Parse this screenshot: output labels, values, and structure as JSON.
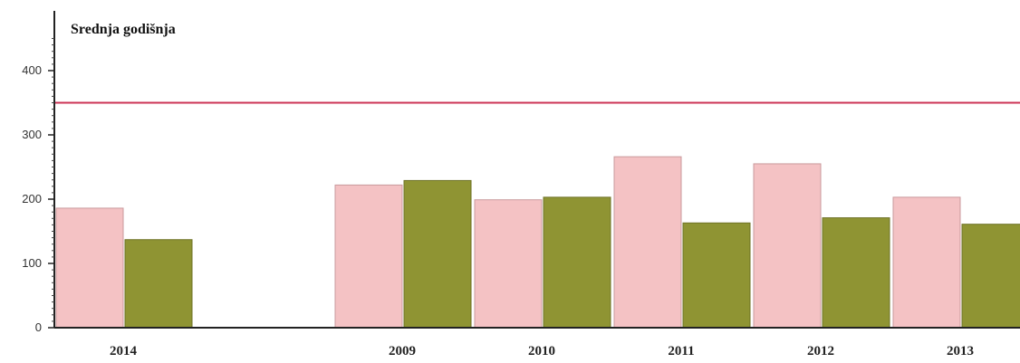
{
  "chart_data": {
    "type": "bar",
    "title": "Srednja godišnja",
    "xlabel": "",
    "ylabel": "",
    "categories": [
      "2014",
      "",
      "2009",
      "2010",
      "2011",
      "2012",
      "2013"
    ],
    "series": [
      {
        "values": [
          186,
          null,
          222,
          199,
          266,
          255,
          203
        ],
        "color": "#f4c2c4"
      },
      {
        "values": [
          137,
          null,
          229,
          203,
          163,
          171,
          161
        ],
        "color": "#8f9433"
      }
    ],
    "reference_line": {
      "value": 350,
      "color": "#cc3355"
    },
    "ylim": [
      0,
      450
    ],
    "yticks": [
      0,
      100,
      200,
      300,
      400
    ],
    "grid": false,
    "legend": "none"
  }
}
